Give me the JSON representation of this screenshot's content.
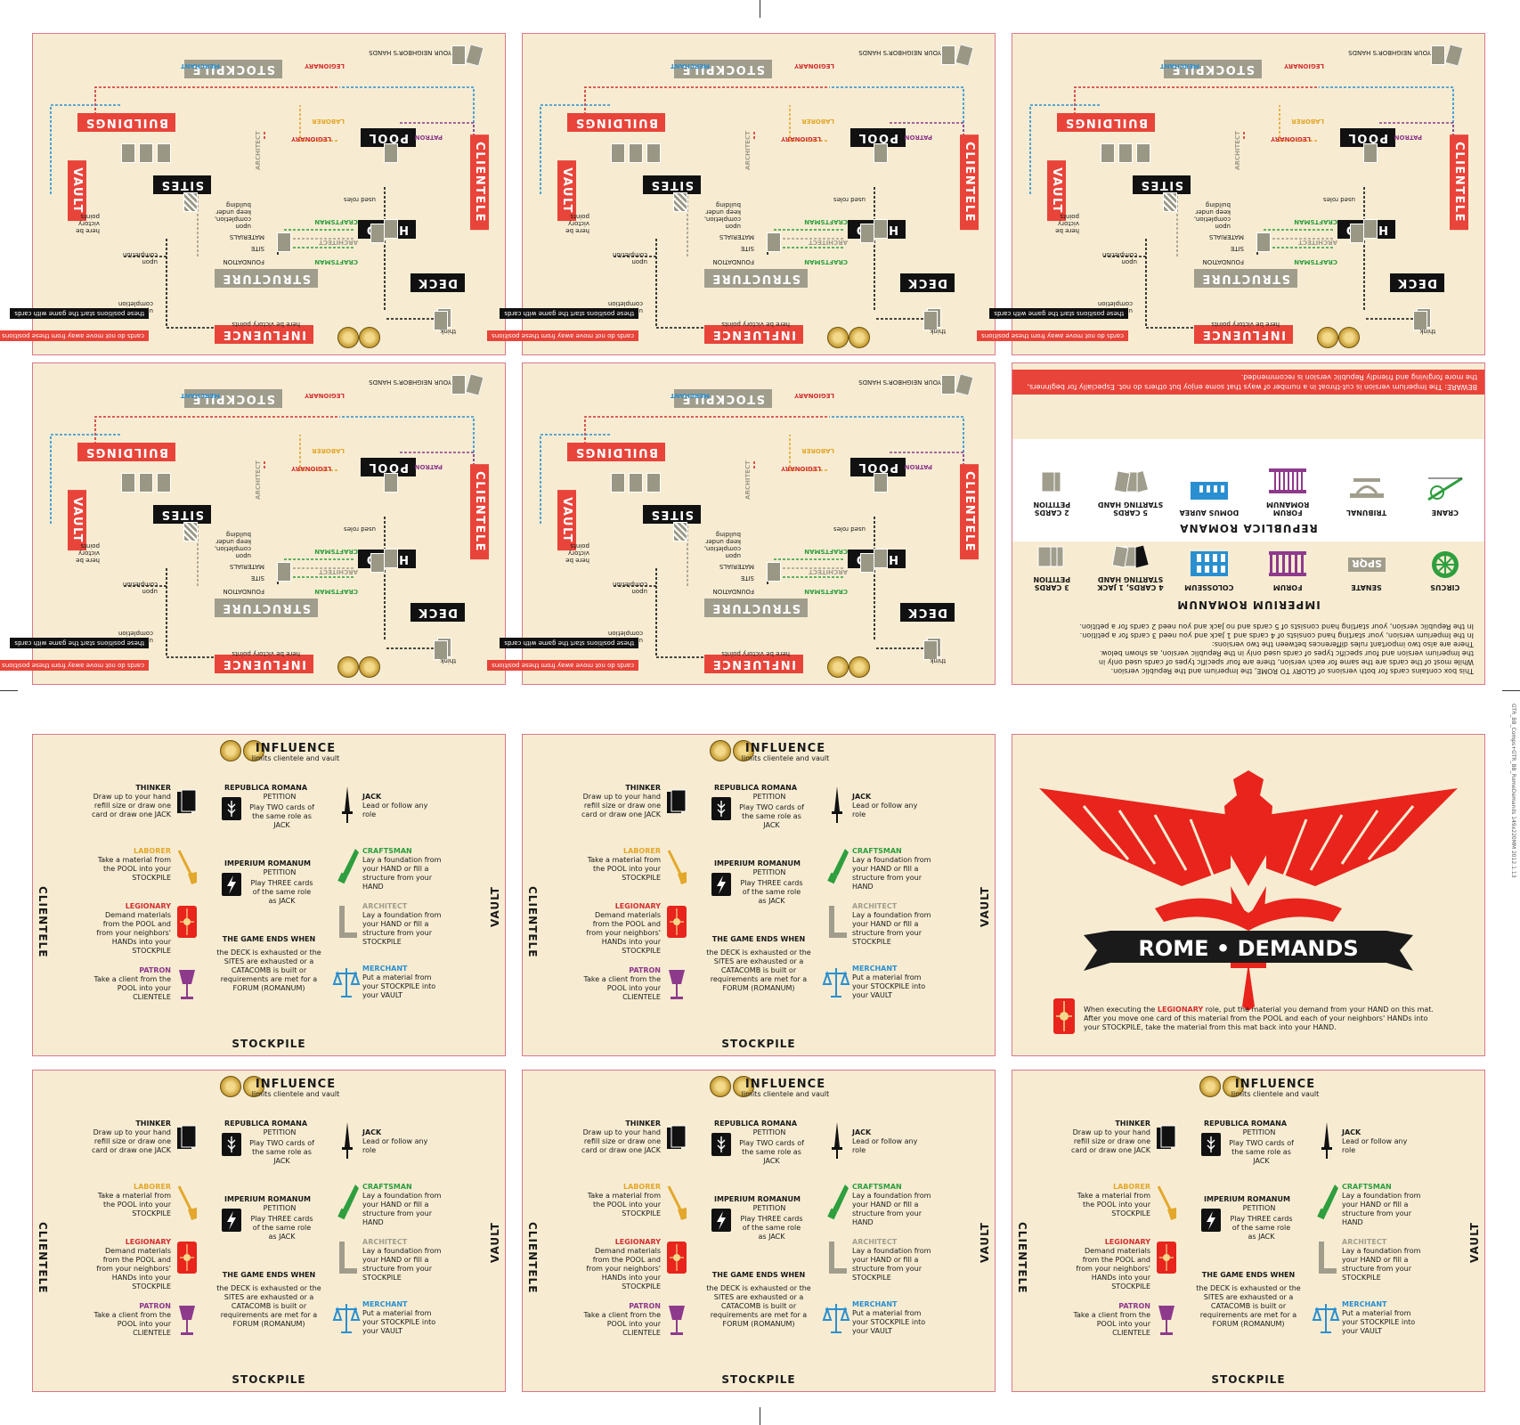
{
  "mat": {
    "stockpile": "STOCKPILE",
    "buildings": "BUILDINGS",
    "sites": "SITES",
    "vault": "VAULT",
    "pool": "POOL",
    "hand": "HAND",
    "clientele": "CLIENTELE",
    "structure": "STRUCTURE",
    "deck": "DECK",
    "influence": "INFLUENCE",
    "neighbors": "YOUR NEIGHBOR'S HANDS",
    "merchant": "MERCHANT",
    "legionary": "LEGIONARY",
    "laborer": "LABORER",
    "patron": "PATRON",
    "architect": "ARCHITECT",
    "craftsman": "CRAFTSMAN",
    "materials": "MATERIALS",
    "site": "SITE",
    "foundation": "FOUNDATION",
    "used_roles": "used roles",
    "here_vp": "here be victory points",
    "vp_here": "here be victory points",
    "upon_completion": "upon completion",
    "keep_under": "upon completion, keep under building",
    "think": "think",
    "note_black": "these positions start the game with cards",
    "note_red": "cards do not move away from these positions"
  },
  "info": {
    "intro": [
      "This box contains cards for both versions of GLORY TO ROME, the Imperium and the Republic version.",
      "While most of the cards are the same for each version, there are four specific types of cards used only in",
      "the Imperium version and four specific types of cards used only in the Republic version, as shown below.",
      "There are also two important rules differences between the two versions:",
      "In the Imperium version, your starting hand consists of 4 cards and 1 Jack and you need 3 cards for a petition.",
      "In the Republic version, your starting hand consists of 5 cards and no Jack and you need 2 cards for a petition."
    ],
    "imperium_title": "IMPERIUM ROMANUM",
    "imperium_items": [
      "CIRCUS",
      "SENATE",
      "FORUM",
      "COLOSSEUM",
      "4 CARDS, 1 JACK STARTING HAND",
      "3 CARDS PETITION"
    ],
    "republica_title": "REPUBLICA ROMANA",
    "republica_items": [
      "CRANE",
      "TRIBUNAL",
      "FORUM ROMANUM",
      "DOMUS AUREA",
      "5 CARDS STARTING HAND",
      "2 CARDS PETITION"
    ],
    "spqr": "SPQR",
    "beware": "BEWARE: The Imperium version is cut-throat in a number of ways that some enjoy but others do not. Especially for beginners, the more forgiving and friendly Republic version is recommended."
  },
  "ref": {
    "influence": "INFLUENCE",
    "influence_sub": "limits clientele and vault",
    "clientele": "CLIENTELE",
    "vault": "VAULT",
    "stockpile": "STOCKPILE",
    "thinker_t": "THINKER",
    "thinker": "Draw up to your hand refill size or draw one card or draw one JACK",
    "laborer_t": "LABORER",
    "laborer": "Take a material from the POOL into your STOCKPILE",
    "legionary_t": "LEGIONARY",
    "legionary": "Demand materials from the POOL and from your neighbors' HANDs into your STOCKPILE",
    "patron_t": "PATRON",
    "patron": "Take a client from the POOL into your CLIENTELE",
    "republica_t": "REPUBLICA ROMANA",
    "republica_p": "PETITION",
    "republica": "Play TWO cards of the same role as JACK",
    "imperium_t": "IMPERIUM ROMANUM",
    "imperium_p": "PETITION",
    "imperium": "Play THREE cards of the same role as JACK",
    "ends_t": "THE GAME ENDS WHEN",
    "ends": "the DECK is exhausted or the SITES are exhausted or a CATACOMB is built or requirements are met for a FORUM (ROMANUM)",
    "jack_t": "JACK",
    "jack": "Lead or follow any role",
    "craftsman_t": "CRAFTSMAN",
    "craftsman": "Lay a foundation from your HAND or fill a structure from your HAND",
    "architect_t": "ARCHITECT",
    "architect": "Lay a foundation from your HAND or fill a structure from your STOCKPILE",
    "merchant_t": "MERCHANT",
    "merchant": "Put a material from your STOCKPILE into your VAULT"
  },
  "rome": {
    "banner": "ROME • DEMANDS",
    "text1": "When executing the ",
    "legionary": "LEGIONARY",
    "text2": " role, put the material you demand from your HAND on this mat.",
    "text3": "After you move one card of this material from the POOL and each of your neighbors' HANDs into",
    "text4": "your STOCKPILE, take the material from this mat back into your HAND."
  },
  "slug": "GTR_BB_Comps+GTR_BB_RomeDemands 149x220MM 2012.1.13",
  "colors": {
    "cream": "#f7ecd2",
    "red": "#e8443a",
    "grey": "#a19d8c",
    "yellow": "#e3a72b",
    "purple": "#8e3a8c",
    "green": "#2e9e3e",
    "blue": "#2a8fd0"
  }
}
